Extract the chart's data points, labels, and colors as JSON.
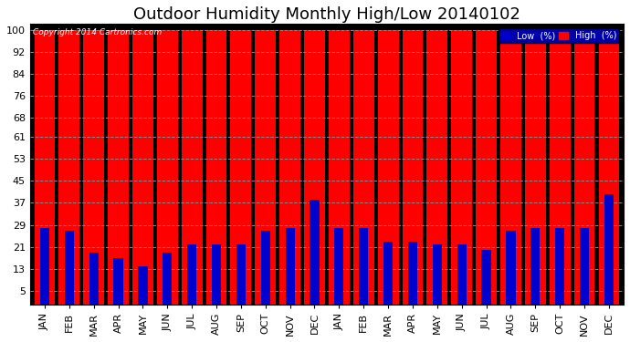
{
  "title": "Outdoor Humidity Monthly High/Low 20140102",
  "copyright": "Copyright 2014 Cartronics.com",
  "months": [
    "JAN",
    "FEB",
    "MAR",
    "APR",
    "MAY",
    "JUN",
    "JUL",
    "AUG",
    "SEP",
    "OCT",
    "NOV",
    "DEC",
    "JAN",
    "FEB",
    "MAR",
    "APR",
    "MAY",
    "JUN",
    "JUL",
    "AUG",
    "SEP",
    "OCT",
    "NOV",
    "DEC"
  ],
  "high_values": [
    100,
    100,
    100,
    100,
    100,
    100,
    100,
    100,
    100,
    100,
    100,
    100,
    100,
    100,
    100,
    100,
    100,
    100,
    100,
    100,
    100,
    100,
    100,
    100
  ],
  "low_values": [
    28,
    27,
    19,
    17,
    14,
    19,
    22,
    22,
    22,
    27,
    28,
    38,
    28,
    28,
    23,
    23,
    22,
    22,
    20,
    27,
    28,
    28,
    28,
    40
  ],
  "high_color": "#FF0000",
  "low_color": "#0000CC",
  "bg_color": "#FFFFFF",
  "plot_bg_color": "#000000",
  "grid_color": "#888888",
  "yticks": [
    5,
    13,
    21,
    29,
    37,
    45,
    53,
    61,
    68,
    76,
    84,
    92,
    100
  ],
  "ylim": [
    0,
    102
  ],
  "title_fontsize": 13,
  "tick_fontsize": 8,
  "legend_low_label": "Low  (%)",
  "legend_high_label": "High  (%)"
}
